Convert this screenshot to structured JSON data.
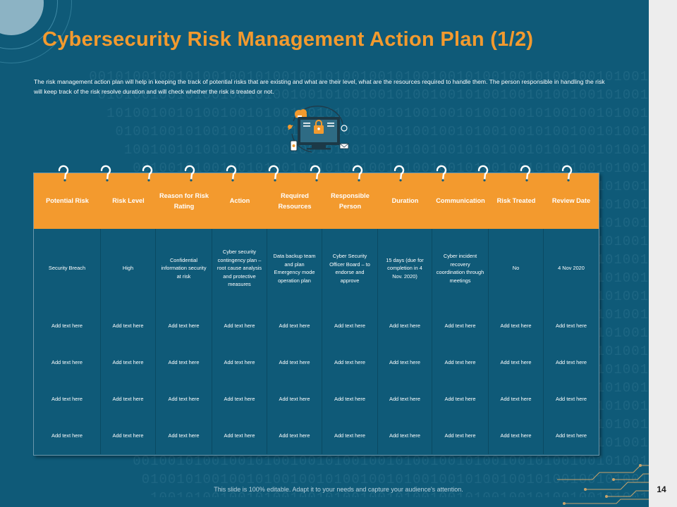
{
  "title": "Cybersecurity Risk Management Action Plan (1/2)",
  "intro": "The risk management  action plan will help in keeping the track of potential risks that are existing and what are their level, what are the resources required to handle them. The person responsible in handling the risk will keep track of the risk resolve duration and will check whether the risk is treated  or not.",
  "table": {
    "headers": [
      "Potential Risk",
      "Risk Level",
      "Reason for Risk Rating",
      "Action",
      "Required Resources",
      "Responsible Person",
      "Duration",
      "Communication",
      "Risk Treated",
      "Review Date"
    ],
    "rows": [
      [
        "Security Breach",
        "High",
        "Confidential information security at risk",
        "Cyber security contingency plan – root cause analysis and protective measures",
        "Data backup team and plan Emergency mode operation plan",
        "Cyber Security Officer Board – to endorse and approve",
        "15 days (due for completion in 4 Nov. 2020)",
        "Cyber incident recovery coordination through meetings",
        "No",
        "4 Nov 2020"
      ],
      [
        "Add text here",
        "Add text here",
        "Add text here",
        "Add text here",
        "Add text here",
        "Add text here",
        "Add text here",
        "Add text here",
        "Add text here",
        "Add text here"
      ],
      [
        "Add text here",
        "Add text here",
        "Add text here",
        "Add text here",
        "Add text here",
        "Add text here",
        "Add text here",
        "Add text here",
        "Add text here",
        "Add text here"
      ],
      [
        "Add text here",
        "Add text here",
        "Add text here",
        "Add text here",
        "Add text here",
        "Add text here",
        "Add text here",
        "Add text here",
        "Add text here",
        "Add text here"
      ],
      [
        "Add text here",
        "Add text here",
        "Add text here",
        "Add text here",
        "Add text here",
        "Add text here",
        "Add text here",
        "Add text here",
        "Add text here",
        "Add text here"
      ]
    ]
  },
  "footer": "This slide is 100% editable. Adapt it to your needs and capture your audience's attention.",
  "page_number": "14",
  "background_binary": "00101001",
  "colors": {
    "background": "#0f5a78",
    "accent": "#f39a2e",
    "text": "#ffffff",
    "side_strip": "#ededed"
  },
  "icons": [
    "cyber-security-laptop-icon",
    "binder-ring-icon",
    "circuit-lines-icon"
  ]
}
